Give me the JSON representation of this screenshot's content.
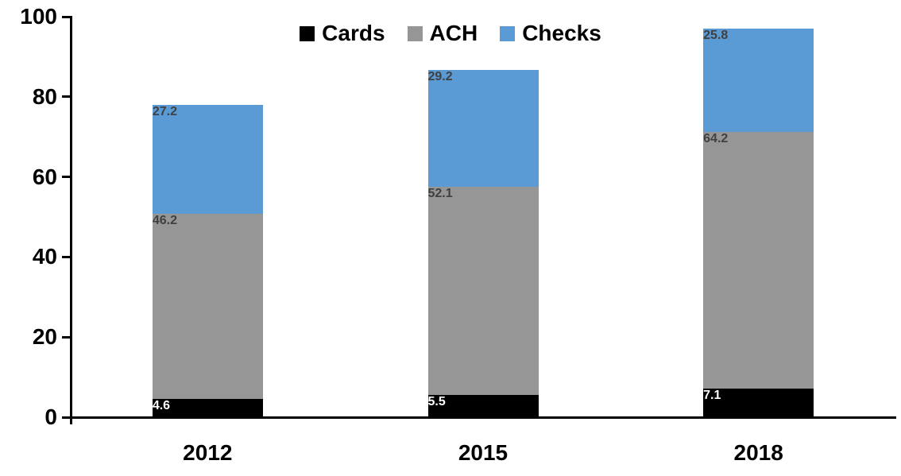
{
  "chart_data": {
    "type": "bar",
    "stacked": true,
    "title": "",
    "categories": [
      "2012",
      "2015",
      "2018"
    ],
    "series": [
      {
        "name": "Cards",
        "color": "#000000",
        "label_color": "#FFFFFF",
        "values": [
          4.6,
          5.5,
          7.1
        ]
      },
      {
        "name": "ACH",
        "color": "#969696",
        "label_color": "#404040",
        "values": [
          46.2,
          52.1,
          64.2
        ]
      },
      {
        "name": "Checks",
        "color": "#5B9BD5",
        "label_color": "#404040",
        "values": [
          27.2,
          29.2,
          25.8
        ]
      }
    ],
    "totals": [
      78.0,
      86.8,
      97.1
    ],
    "xlabel": "",
    "ylabel": "",
    "ylim": [
      0,
      100
    ],
    "yticks": [
      0,
      20,
      40,
      60,
      80,
      100
    ],
    "legend_position": "top-center",
    "grid": false,
    "axis_color": "#000000",
    "background_color": "#FFFFFF",
    "data_label_decimals": 1
  }
}
